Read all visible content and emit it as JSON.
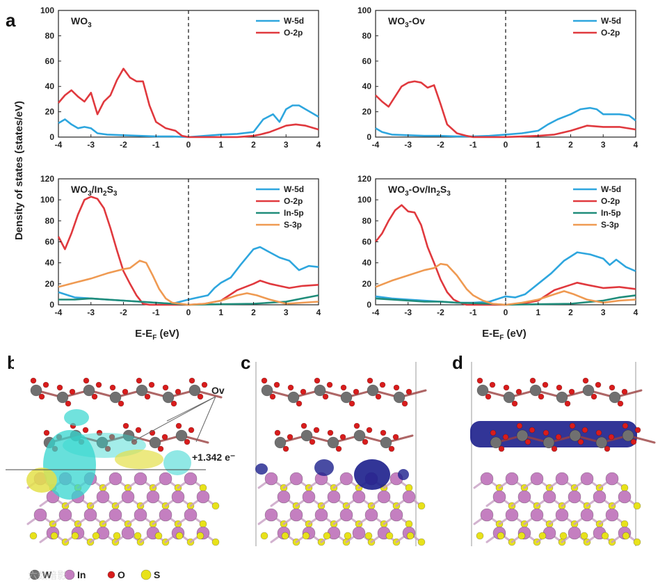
{
  "panel_letters": {
    "a": "a",
    "b": "b",
    "c": "c",
    "d": "d"
  },
  "y_axis_label": "Density of states (states/eV)",
  "x_axis_label": "E-E",
  "x_axis_label_sub": "F",
  "x_axis_label_unit": " (eV)",
  "colors": {
    "W-5d": "#2ea6de",
    "O-2p": "#e0393e",
    "In-5p": "#1f8c7a",
    "S-3p": "#ef9a52"
  },
  "chart_data": [
    {
      "type": "line",
      "title": "WO3",
      "title_parts": [
        "WO",
        "3",
        ""
      ],
      "xlim": [
        -4,
        4
      ],
      "ylim": [
        0,
        100
      ],
      "xticks": [
        -4,
        -3,
        -2,
        -1,
        0,
        1,
        2,
        3,
        4
      ],
      "yticks": [
        0,
        20,
        40,
        60,
        80,
        100
      ],
      "fermi_level": 0,
      "series": [
        {
          "name": "W-5d",
          "x": [
            -4,
            -3.8,
            -3.6,
            -3.4,
            -3.2,
            -3,
            -2.8,
            -2.5,
            -2,
            -1.5,
            -1,
            -0.5,
            0,
            0.5,
            1,
            1.5,
            2,
            2.3,
            2.6,
            2.8,
            3,
            3.2,
            3.4,
            3.6,
            3.8,
            4
          ],
          "y": [
            11,
            14,
            10,
            7,
            8,
            7,
            3,
            2,
            1.5,
            1,
            0.5,
            0.5,
            0,
            1,
            2,
            2.5,
            4,
            14,
            18,
            12,
            22,
            25,
            25,
            22,
            19,
            16
          ]
        },
        {
          "name": "O-2p",
          "x": [
            -4,
            -3.8,
            -3.6,
            -3.4,
            -3.2,
            -3,
            -2.8,
            -2.6,
            -2.4,
            -2.2,
            -2,
            -1.8,
            -1.6,
            -1.4,
            -1.2,
            -1,
            -0.7,
            -0.4,
            -0.2,
            0,
            0.5,
            1,
            1.5,
            2,
            2.2,
            2.5,
            2.8,
            3,
            3.3,
            3.6,
            4
          ],
          "y": [
            27,
            33,
            37,
            32,
            28,
            35,
            18,
            28,
            33,
            45,
            54,
            47,
            44,
            44,
            25,
            12,
            7,
            5,
            1,
            0,
            0,
            0,
            0,
            1,
            2,
            4,
            7,
            9,
            10,
            9,
            6
          ]
        }
      ],
      "legend": [
        "W-5d",
        "O-2p"
      ]
    },
    {
      "type": "line",
      "title": "WO3-Ov",
      "title_parts": [
        "WO",
        "3",
        "-Ov"
      ],
      "xlim": [
        -4,
        4
      ],
      "ylim": [
        0,
        100
      ],
      "xticks": [
        -4,
        -3,
        -2,
        -1,
        0,
        1,
        2,
        3,
        4
      ],
      "yticks": [
        0,
        20,
        40,
        60,
        80,
        100
      ],
      "fermi_level": 0,
      "series": [
        {
          "name": "W-5d",
          "x": [
            -4,
            -3.8,
            -3.5,
            -3,
            -2.5,
            -2,
            -1.5,
            -1,
            -0.5,
            0,
            0.5,
            1,
            1.3,
            1.6,
            2,
            2.3,
            2.6,
            2.8,
            3,
            3.5,
            3.8,
            4
          ],
          "y": [
            7,
            4,
            2,
            1.5,
            1,
            1,
            0.5,
            0.5,
            1,
            2,
            3,
            5,
            10,
            14,
            18,
            22,
            23,
            22,
            18,
            18,
            17,
            13
          ]
        },
        {
          "name": "O-2p",
          "x": [
            -4,
            -3.8,
            -3.6,
            -3.4,
            -3.2,
            -3,
            -2.8,
            -2.6,
            -2.4,
            -2.2,
            -2,
            -1.8,
            -1.5,
            -1.2,
            -1,
            -0.5,
            0,
            0.5,
            1,
            1.5,
            2,
            2.5,
            3,
            3.5,
            4
          ],
          "y": [
            33,
            28,
            24,
            32,
            40,
            43,
            44,
            43,
            39,
            41,
            26,
            10,
            3,
            1,
            0,
            0,
            0,
            0.5,
            1,
            2,
            5,
            9,
            8,
            8,
            6
          ]
        }
      ],
      "legend": [
        "W-5d",
        "O-2p"
      ]
    },
    {
      "type": "line",
      "title": "WO3/In2S3",
      "title_parts": [
        "WO",
        "3",
        "/In",
        "2",
        "S",
        "3"
      ],
      "xlim": [
        -4,
        4
      ],
      "ylim": [
        0,
        120
      ],
      "xticks": [
        -4,
        -3,
        -2,
        -1,
        0,
        1,
        2,
        3,
        4
      ],
      "yticks": [
        0,
        20,
        40,
        60,
        80,
        100,
        120
      ],
      "fermi_level": 0,
      "series": [
        {
          "name": "W-5d",
          "x": [
            -4,
            -3.5,
            -3,
            -2.5,
            -2,
            -1.5,
            -1,
            -0.5,
            0,
            0.3,
            0.6,
            0.8,
            1,
            1.3,
            1.6,
            2,
            2.2,
            2.5,
            2.8,
            3.1,
            3.4,
            3.7,
            4
          ],
          "y": [
            12,
            7,
            6,
            5,
            4,
            3,
            2,
            1,
            5,
            7,
            9,
            16,
            21,
            26,
            38,
            53,
            55,
            50,
            45,
            42,
            33,
            37,
            36
          ]
        },
        {
          "name": "O-2p",
          "x": [
            -4,
            -3.8,
            -3.6,
            -3.4,
            -3.2,
            -3,
            -2.8,
            -2.6,
            -2.4,
            -2.2,
            -2,
            -1.8,
            -1.6,
            -1.4,
            -1.2,
            -1,
            0,
            0.5,
            1,
            1.5,
            2,
            2.2,
            2.5,
            2.8,
            3.1,
            3.5,
            4
          ],
          "y": [
            65,
            53,
            68,
            86,
            100,
            103,
            101,
            92,
            73,
            52,
            32,
            20,
            9,
            1,
            0,
            0,
            0,
            1,
            4,
            14,
            20,
            23,
            20,
            18,
            16,
            18,
            19
          ]
        },
        {
          "name": "In-5p",
          "x": [
            -4,
            -3.5,
            -3,
            -2.5,
            -2,
            -1.5,
            -1,
            -0.5,
            0,
            1,
            2,
            3,
            3.5,
            4
          ],
          "y": [
            5,
            5,
            6,
            5,
            4,
            3,
            2,
            1,
            0,
            0.5,
            1,
            3,
            6,
            9
          ]
        },
        {
          "name": "S-3p",
          "x": [
            -4,
            -3.5,
            -3,
            -2.5,
            -2,
            -1.8,
            -1.5,
            -1.3,
            -1.1,
            -0.9,
            -0.7,
            -0.5,
            0,
            0.5,
            1,
            1.5,
            1.8,
            2.1,
            2.5,
            3,
            3.5,
            4
          ],
          "y": [
            17,
            21,
            25,
            30,
            34,
            35,
            42,
            40,
            28,
            15,
            6,
            2,
            0,
            1,
            4,
            9,
            11,
            9,
            5,
            1,
            2,
            3
          ]
        }
      ],
      "legend": [
        "W-5d",
        "O-2p",
        "In-5p",
        "S-3p"
      ]
    },
    {
      "type": "line",
      "title": "WO3-Ov/In2S3",
      "title_parts": [
        "WO",
        "3",
        "-Ov/In",
        "2",
        "S",
        "3"
      ],
      "xlim": [
        -4,
        4
      ],
      "ylim": [
        0,
        120
      ],
      "xticks": [
        -4,
        -3,
        -2,
        -1,
        0,
        1,
        2,
        3,
        4
      ],
      "yticks": [
        0,
        20,
        40,
        60,
        80,
        100,
        120
      ],
      "fermi_level": 0,
      "series": [
        {
          "name": "W-5d",
          "x": [
            -4,
            -3.5,
            -3,
            -2.5,
            -2,
            -1.5,
            -1,
            -0.5,
            0,
            0.3,
            0.6,
            1,
            1.4,
            1.8,
            2.2,
            2.6,
            3,
            3.2,
            3.4,
            3.7,
            4
          ],
          "y": [
            8,
            6,
            5,
            4,
            3,
            2,
            2,
            3,
            8,
            7,
            10,
            20,
            30,
            42,
            50,
            48,
            44,
            38,
            43,
            36,
            32
          ]
        },
        {
          "name": "O-2p",
          "x": [
            -4,
            -3.8,
            -3.6,
            -3.4,
            -3.2,
            -3,
            -2.8,
            -2.6,
            -2.4,
            -2.2,
            -2,
            -1.8,
            -1.6,
            -1.4,
            -1.2,
            -1,
            0,
            0.5,
            1,
            1.5,
            2,
            2.2,
            2.5,
            3,
            3.5,
            4
          ],
          "y": [
            60,
            68,
            80,
            90,
            95,
            89,
            88,
            76,
            55,
            40,
            24,
            12,
            5,
            2,
            0,
            0,
            0,
            1,
            4,
            14,
            19,
            21,
            19,
            16,
            17,
            15
          ]
        },
        {
          "name": "In-5p",
          "x": [
            -4,
            -3.5,
            -3,
            -2.5,
            -2,
            -1.5,
            -1,
            -0.5,
            0,
            1,
            2,
            3,
            3.5,
            4
          ],
          "y": [
            6,
            5,
            4,
            3,
            3,
            2,
            1.5,
            1,
            0,
            0.5,
            1,
            4,
            7,
            9
          ]
        },
        {
          "name": "S-3p",
          "x": [
            -4,
            -3.5,
            -3,
            -2.5,
            -2.2,
            -2,
            -1.8,
            -1.5,
            -1.2,
            -1,
            -0.7,
            -0.4,
            0,
            0.5,
            1,
            1.5,
            1.8,
            2.1,
            2.5,
            3,
            3.5,
            4
          ],
          "y": [
            17,
            23,
            28,
            33,
            35,
            39,
            38,
            28,
            15,
            9,
            4,
            1,
            0,
            2,
            5,
            10,
            13,
            10,
            5,
            2,
            4,
            5
          ]
        }
      ],
      "legend": [
        "W-5d",
        "O-2p",
        "In-5p",
        "S-3p"
      ]
    }
  ],
  "structure_panels": {
    "b_annotation_charge": "+1.342 e⁻",
    "b_annotation_ov": "Ov"
  },
  "atom_legend": [
    {
      "symbol": "W",
      "color": "#707070"
    },
    {
      "symbol": "In",
      "color": "#c47fc0"
    },
    {
      "symbol": "O",
      "color": "#d81c1c"
    },
    {
      "symbol": "S",
      "color": "#e8e21a"
    }
  ],
  "watermark": "六数暗影"
}
